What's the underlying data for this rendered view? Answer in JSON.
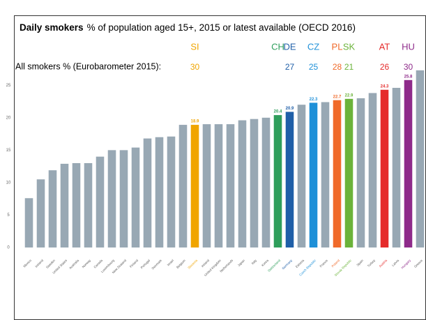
{
  "chart_data": {
    "type": "bar",
    "title": "Daily smokers",
    "subtitle": "% of population aged 15+, 2015 or latest available (OECD 2016)",
    "categories": [
      "Mexico",
      "Iceland",
      "Sweden",
      "United States",
      "Australia",
      "Norway",
      "Canada",
      "Luxembourg",
      "New Zealand",
      "Finland",
      "Portugal",
      "Denmark",
      "Israel",
      "Belgium",
      "Slovenia",
      "Ireland",
      "United Kingdom",
      "Netherlands",
      "Japan",
      "Italy",
      "Korea",
      "Switzerland",
      "Germany",
      "Estonia",
      "Czech Republic",
      "France",
      "Poland",
      "Slovak Republic",
      "Spain",
      "Turkey",
      "Austria",
      "Latvia",
      "Hungary",
      "Greece"
    ],
    "values": [
      7.6,
      10.5,
      11.9,
      12.9,
      13.0,
      13.0,
      14.0,
      15.0,
      15.0,
      15.4,
      16.8,
      17.0,
      17.1,
      18.9,
      18.9,
      19.0,
      19.0,
      19.0,
      19.6,
      19.8,
      20.0,
      20.4,
      20.9,
      22.0,
      22.3,
      22.4,
      22.7,
      22.9,
      23.0,
      23.8,
      24.3,
      24.6,
      25.8,
      27.3
    ],
    "color": "#98a8b4",
    "colors": [
      "#98a8b4",
      "#98a8b4",
      "#98a8b4",
      "#98a8b4",
      "#98a8b4",
      "#98a8b4",
      "#98a8b4",
      "#98a8b4",
      "#98a8b4",
      "#98a8b4",
      "#98a8b4",
      "#98a8b4",
      "#98a8b4",
      "#98a8b4",
      "#f0a500",
      "#98a8b4",
      "#98a8b4",
      "#98a8b4",
      "#98a8b4",
      "#98a8b4",
      "#98a8b4",
      "#2e9e5b",
      "#1f5fa8",
      "#98a8b4",
      "#1e90d8",
      "#98a8b4",
      "#f06a2a",
      "#6bb33a",
      "#98a8b4",
      "#98a8b4",
      "#e52b2b",
      "#98a8b4",
      "#8e2a8a",
      "#98a8b4"
    ],
    "ylim": [
      0,
      27.5
    ],
    "yticks": [
      0,
      5,
      10,
      15,
      20,
      25
    ],
    "eurobarometer": {
      "label": "All smokers % (Eurobarometer 2015):",
      "items": [
        {
          "code": "SI",
          "value": 30,
          "color": "#f0a500"
        },
        {
          "code": "CH",
          "value": null,
          "color": "#2e9e5b"
        },
        {
          "code": "DE",
          "value": 27,
          "color": "#1f5fa8"
        },
        {
          "code": "CZ",
          "value": 25,
          "color": "#1e90d8"
        },
        {
          "code": "PL",
          "value": 28,
          "color": "#f06a2a"
        },
        {
          "code": "SK",
          "value": 21,
          "color": "#6bb33a"
        },
        {
          "code": "AT",
          "value": 26,
          "color": "#e52b2b"
        },
        {
          "code": "HU",
          "value": 30,
          "color": "#8e2a8a"
        }
      ]
    }
  }
}
